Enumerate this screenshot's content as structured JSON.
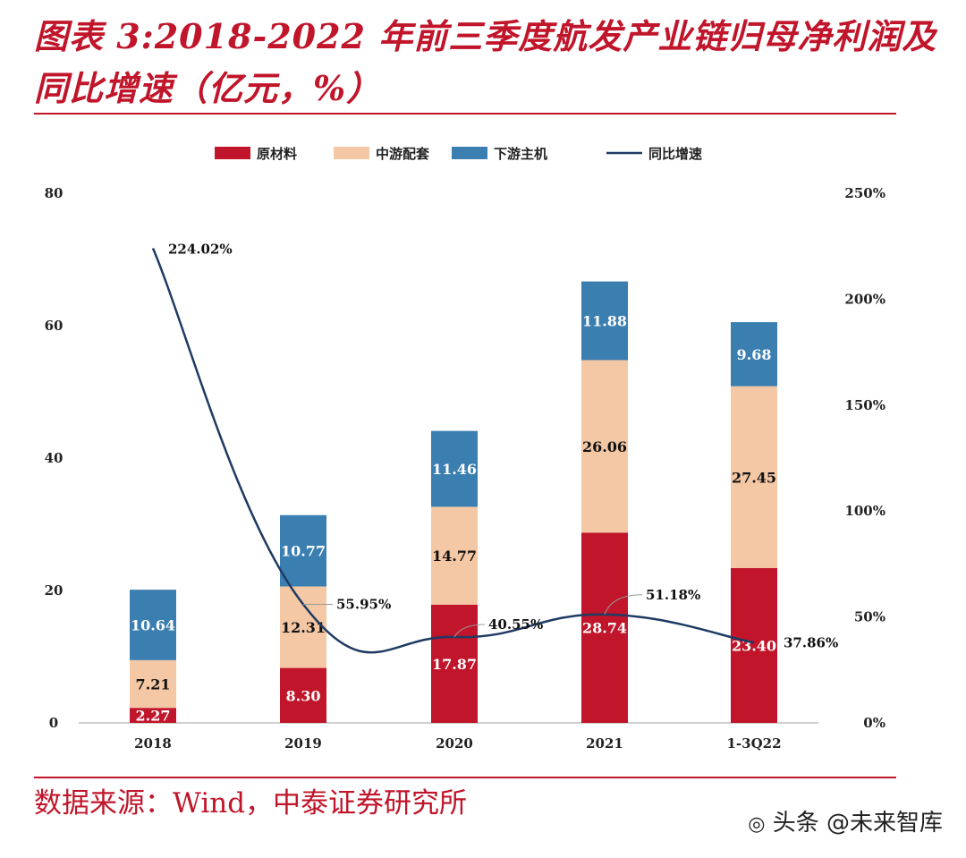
{
  "figure": {
    "title": "图表 3:2018-2022 年前三季度航发产业链归母净利润及同比增速（亿元，%）",
    "source": "数据来源：Wind，中泰证券研究所",
    "watermark": "头条 @未来智库",
    "watermark_icon": "wechat-bubble-icon"
  },
  "chart_data": {
    "type": "bar",
    "stacked": true,
    "categories": [
      "2018",
      "2019",
      "2020",
      "2021",
      "1-3Q22"
    ],
    "series": [
      {
        "name": "原材料",
        "color": "#c0152a",
        "label_color": "#ffffff",
        "values": [
          2.27,
          8.3,
          17.87,
          28.74,
          23.4
        ],
        "labels": [
          "2.27",
          "8.30",
          "17.87",
          "28.74",
          "23.40"
        ]
      },
      {
        "name": "中游配套",
        "color": "#f4c7a5",
        "label_color": "#111111",
        "values": [
          7.21,
          12.31,
          14.77,
          26.06,
          27.45
        ],
        "labels": [
          "7.21",
          "12.31",
          "14.77",
          "26.06",
          "27.45"
        ]
      },
      {
        "name": "下游主机",
        "color": "#3b7fb0",
        "label_color": "#ffffff",
        "values": [
          10.64,
          10.77,
          11.46,
          11.88,
          9.68
        ],
        "labels": [
          "10.64",
          "10.77",
          "11.46",
          "11.88",
          "9.68"
        ]
      }
    ],
    "line_series": {
      "name": "同比增速",
      "color": "#1f3a63",
      "axis": "right",
      "values": [
        224.02,
        55.95,
        40.55,
        51.18,
        37.86
      ],
      "labels": [
        "224.02%",
        "55.95%",
        "40.55%",
        "51.18%",
        "37.86%"
      ]
    },
    "left_axis": {
      "min": 0,
      "max": 80,
      "ticks": [
        "0",
        "20",
        "40",
        "60",
        "80"
      ]
    },
    "right_axis": {
      "min": 0,
      "max": 250,
      "ticks": [
        "0%",
        "50%",
        "100%",
        "150%",
        "200%",
        "250%"
      ]
    },
    "legend_position": "top-center",
    "grid": false
  }
}
